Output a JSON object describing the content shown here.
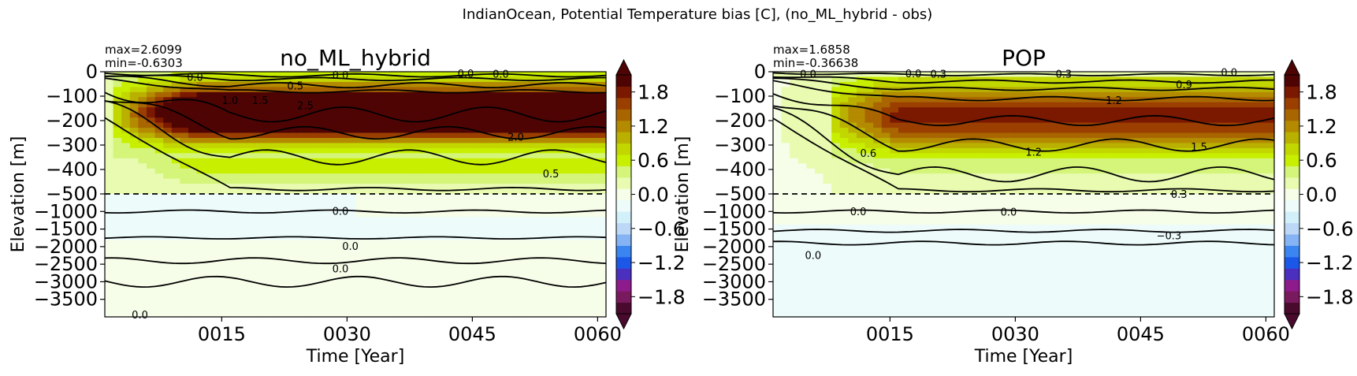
{
  "figure": {
    "suptitle": "IndianOcean, Potential Temperature bias [C], (no_ML_hybrid - obs)"
  },
  "colors": {
    "contour": "#000000",
    "dashed_line": "#000000",
    "colormap": [
      "#4a0a2e",
      "#7a1a5e",
      "#8e1b8c",
      "#4b2fbf",
      "#1c58e8",
      "#3a85f0",
      "#86b3f4",
      "#bcd8f6",
      "#d2f0fa",
      "#edfcfb",
      "#f6fde8",
      "#e8fbb0",
      "#d4f57a",
      "#c8ef00",
      "#c2d600",
      "#b9b000",
      "#b38a00",
      "#a86500",
      "#9a3f00",
      "#7a1800",
      "#4f0404"
    ]
  },
  "chart_data": [
    {
      "type": "heatmap",
      "title": "no_ML_hybrid",
      "stats": {
        "max": "max=2.6099",
        "min": "min=-0.6303"
      },
      "xlabel": "Time [Year]",
      "ylabel": "Elevation [m]",
      "xticks": [
        "0015",
        "0030",
        "0045",
        "0060"
      ],
      "xtick_values": [
        15,
        30,
        45,
        60
      ],
      "xlim": [
        1,
        61
      ],
      "yticks": [
        "0",
        "−100",
        "−200",
        "−300",
        "−400",
        "−500",
        "−1000",
        "−1500",
        "−2000",
        "−2500",
        "−3000",
        "−3500"
      ],
      "ytick_values": [
        0,
        -100,
        -200,
        -300,
        -400,
        -500,
        -1000,
        -1500,
        -2000,
        -2500,
        -3000,
        -3500
      ],
      "ylim": [
        -4000,
        0
      ],
      "y_scale": "piecewise linear: 0 to −500 m upper segment, −500 to −4000 m lower segment",
      "dashed_line_depth": -500,
      "colorbar": {
        "ticks": [
          "1.8",
          "1.2",
          "0.6",
          "0.0",
          "−0.6",
          "−1.2",
          "−1.8"
        ],
        "tick_values": [
          1.8,
          1.2,
          0.6,
          0.0,
          -0.6,
          -1.2,
          -1.8
        ],
        "range": [
          -2.1,
          2.1
        ]
      },
      "contour_labels": [
        "0.0",
        "0.0",
        "0.0",
        "0.0",
        "1.0",
        "1.5",
        "0.5",
        "2.5",
        "2.0",
        "0.5",
        "0.0",
        "0.0",
        "0.0",
        "0.0"
      ]
    },
    {
      "type": "heatmap",
      "title": "POP",
      "stats": {
        "max": "max=1.6858",
        "min": "min=-0.36638"
      },
      "xlabel": "Time [Year]",
      "ylabel": "Elevation [m]",
      "xticks": [
        "0015",
        "0030",
        "0045",
        "0060"
      ],
      "xtick_values": [
        15,
        30,
        45,
        60
      ],
      "xlim": [
        1,
        61
      ],
      "yticks": [
        "0",
        "−100",
        "−200",
        "−300",
        "−400",
        "−500",
        "−1000",
        "−1500",
        "−2000",
        "−2500",
        "−3000",
        "−3500"
      ],
      "ytick_values": [
        0,
        -100,
        -200,
        -300,
        -400,
        -500,
        -1000,
        -1500,
        -2000,
        -2500,
        -3000,
        -3500
      ],
      "ylim": [
        -4000,
        0
      ],
      "y_scale": "piecewise linear: 0 to −500 m upper segment, −500 to −4000 m lower segment",
      "dashed_line_depth": -500,
      "colorbar": {
        "ticks": [
          "1.8",
          "1.2",
          "0.6",
          "0.0",
          "−0.6",
          "−1.2",
          "−1.8"
        ],
        "tick_values": [
          1.8,
          1.2,
          0.6,
          0.0,
          -0.6,
          -1.2,
          -1.8
        ],
        "range": [
          -2.1,
          2.1
        ]
      },
      "contour_labels": [
        "0.0",
        "0.0",
        "0.3",
        "0.3",
        "0.0",
        "0.9",
        "1.2",
        "0.6",
        "1.2",
        "1.5",
        "0.3",
        "0.0",
        "0.0",
        "−0.3",
        "0.0"
      ]
    }
  ]
}
